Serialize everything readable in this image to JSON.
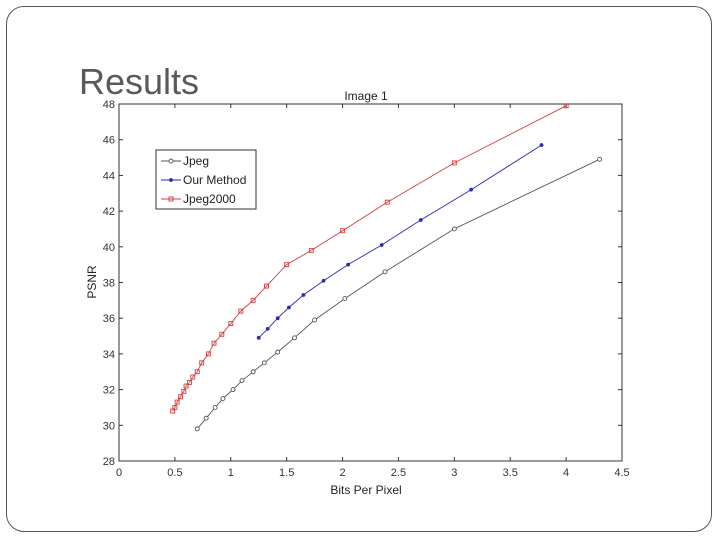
{
  "slide": {
    "title": "Results"
  },
  "chart_data": {
    "type": "line",
    "title": "Image 1",
    "xlabel": "Bits Per Pixel",
    "ylabel": "PSNR",
    "xlim": [
      0,
      4.5
    ],
    "ylim": [
      28,
      48
    ],
    "xticks": [
      0,
      0.5,
      1,
      1.5,
      2,
      2.5,
      3,
      3.5,
      4,
      4.5
    ],
    "xtick_labels": [
      "0",
      "0.5",
      "1",
      "1.5",
      "2",
      "2.5",
      "3",
      "3.5",
      "4",
      "4.5"
    ],
    "yticks": [
      28,
      30,
      32,
      34,
      36,
      38,
      40,
      42,
      44,
      46,
      48
    ],
    "ytick_labels": [
      "28",
      "30",
      "32",
      "34",
      "36",
      "38",
      "40",
      "42",
      "44",
      "46",
      "48"
    ],
    "grid": false,
    "legend_position": "top-left",
    "series": [
      {
        "name": "Jpeg",
        "color": "#555555",
        "marker": "circle",
        "points": [
          [
            0.7,
            29.8
          ],
          [
            0.78,
            30.4
          ],
          [
            0.86,
            31.0
          ],
          [
            0.93,
            31.5
          ],
          [
            1.02,
            32.0
          ],
          [
            1.1,
            32.5
          ],
          [
            1.2,
            33.0
          ],
          [
            1.3,
            33.5
          ],
          [
            1.42,
            34.1
          ],
          [
            1.57,
            34.9
          ],
          [
            1.75,
            35.9
          ],
          [
            2.02,
            37.1
          ],
          [
            2.38,
            38.6
          ],
          [
            3.0,
            41.0
          ],
          [
            4.3,
            44.9
          ]
        ]
      },
      {
        "name": "Our Method",
        "color": "#2a2ab8",
        "marker": "dot",
        "points": [
          [
            1.25,
            34.9
          ],
          [
            1.33,
            35.4
          ],
          [
            1.42,
            36.0
          ],
          [
            1.52,
            36.6
          ],
          [
            1.65,
            37.3
          ],
          [
            1.83,
            38.1
          ],
          [
            2.05,
            39.0
          ],
          [
            2.35,
            40.1
          ],
          [
            2.7,
            41.5
          ],
          [
            3.15,
            43.2
          ],
          [
            3.78,
            45.7
          ]
        ]
      },
      {
        "name": "Jpeg2000",
        "color": "#d04040",
        "marker": "square",
        "points": [
          [
            0.48,
            30.8
          ],
          [
            0.5,
            31.0
          ],
          [
            0.52,
            31.3
          ],
          [
            0.55,
            31.6
          ],
          [
            0.58,
            31.9
          ],
          [
            0.6,
            32.2
          ],
          [
            0.63,
            32.4
          ],
          [
            0.66,
            32.7
          ],
          [
            0.7,
            33.0
          ],
          [
            0.74,
            33.5
          ],
          [
            0.8,
            34.0
          ],
          [
            0.85,
            34.6
          ],
          [
            0.92,
            35.1
          ],
          [
            1.0,
            35.7
          ],
          [
            1.09,
            36.4
          ],
          [
            1.2,
            37.0
          ],
          [
            1.32,
            37.8
          ],
          [
            1.5,
            39.0
          ],
          [
            1.72,
            39.8
          ],
          [
            2.0,
            40.9
          ],
          [
            2.4,
            42.5
          ],
          [
            3.0,
            44.7
          ],
          [
            4.0,
            47.9
          ]
        ]
      }
    ]
  }
}
